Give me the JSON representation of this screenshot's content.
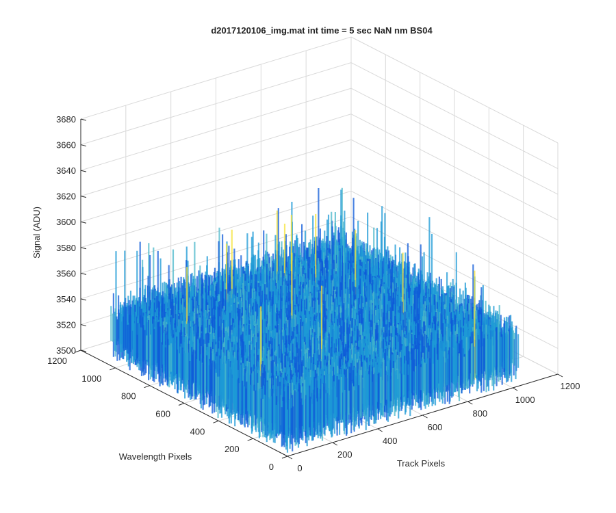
{
  "chart_data": {
    "type": "surface",
    "title": "d2017120106_img.mat int time = 5 sec  NaN nm BS04",
    "xlabel": "Track Pixels",
    "ylabel": "Wavelength Pixels",
    "zlabel": "Signal (ADU)",
    "xlim": [
      0,
      1200
    ],
    "ylim": [
      0,
      1200
    ],
    "zlim": [
      3500,
      3680
    ],
    "xticks": [
      "0",
      "200",
      "400",
      "600",
      "800",
      "1000",
      "1200"
    ],
    "yticks": [
      "0",
      "200",
      "400",
      "600",
      "800",
      "1000",
      "1200"
    ],
    "zticks": [
      "3500",
      "3520",
      "3540",
      "3560",
      "3580",
      "3600",
      "3620",
      "3640",
      "3660",
      "3680"
    ],
    "surface_extent": {
      "x": [
        0,
        1024
      ],
      "y": [
        0,
        1024
      ]
    },
    "signal_mean": 3528,
    "signal_noise_range": [
      3500,
      3600
    ],
    "grid": true,
    "colormap": "parula",
    "colors": {
      "low": "#0f5bd8",
      "mid": "#1e9ad6",
      "high": "#4ab7c9",
      "peak": "#f5e33a",
      "grid": "#d9d9d9",
      "axis": "#262626"
    }
  }
}
